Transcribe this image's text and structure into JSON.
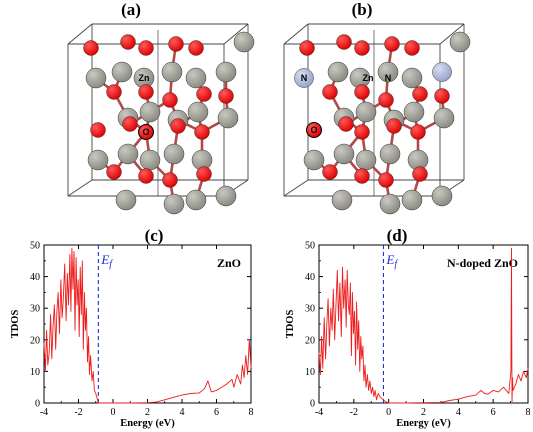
{
  "structures": [
    {
      "panel_label": "(a)",
      "atom_labels": [
        {
          "text": "Zn",
          "kind": "zn"
        },
        {
          "text": "O",
          "kind": "o"
        }
      ]
    },
    {
      "panel_label": "(b)",
      "atom_labels": [
        {
          "text": "N",
          "kind": "n"
        },
        {
          "text": "Zn",
          "kind": "zn"
        },
        {
          "text": "N",
          "kind": "n"
        },
        {
          "text": "O",
          "kind": "o"
        }
      ]
    }
  ],
  "colors": {
    "zinc": "#8a8a82",
    "oxygen": "#e00000",
    "nitrogen": "#9aa3c8",
    "dos_line": "#ee1c1c",
    "fermi_line": "#1f2fd8",
    "cell_edge": "#444444"
  },
  "chart_data": [
    {
      "type": "line",
      "panel_label": "(c)",
      "title": "ZnO",
      "xlabel": "Energy (eV)",
      "ylabel": "TDOS",
      "xlim": [
        -4,
        8
      ],
      "ylim": [
        0,
        50
      ],
      "xticks": [
        -4,
        -2,
        0,
        2,
        4,
        6,
        8
      ],
      "yticks": [
        0,
        10,
        20,
        30,
        40,
        50
      ],
      "fermi_level": -0.85,
      "fermi_label": "E_f",
      "grid": false,
      "series": [
        {
          "x": [
            -4.0,
            -3.92,
            -3.85,
            -3.78,
            -3.7,
            -3.62,
            -3.55,
            -3.48,
            -3.4,
            -3.32,
            -3.25,
            -3.18,
            -3.1,
            -3.02,
            -2.95,
            -2.88,
            -2.8,
            -2.72,
            -2.65,
            -2.58,
            -2.5,
            -2.44,
            -2.38,
            -2.32,
            -2.26,
            -2.2,
            -2.14,
            -2.08,
            -2.02,
            -1.96,
            -1.9,
            -1.84,
            -1.78,
            -1.72,
            -1.66,
            -1.6,
            -1.54,
            -1.48,
            -1.42,
            -1.36,
            -1.3,
            -1.22,
            -1.15,
            -1.08,
            -1.0,
            -0.95,
            -0.9,
            -0.85,
            -0.8,
            -0.5,
            0.0,
            1.0,
            2.0,
            2.5,
            3.0,
            3.5,
            4.0,
            4.5,
            5.0,
            5.3,
            5.5,
            5.7,
            6.0,
            6.3,
            6.6,
            6.9,
            7.0,
            7.2,
            7.4,
            7.5,
            7.6,
            7.7,
            7.8,
            7.9,
            8.0
          ],
          "y": [
            19,
            10,
            23,
            12,
            16,
            28,
            14,
            24,
            31,
            17,
            29,
            35,
            22,
            39,
            27,
            33,
            44,
            26,
            41,
            31,
            47,
            29,
            49,
            36,
            48,
            23,
            46,
            31,
            39,
            21,
            43,
            28,
            45,
            17,
            35,
            23,
            30,
            13,
            21,
            9,
            15,
            7,
            10,
            4,
            3,
            2,
            1,
            0,
            0,
            0,
            0,
            0,
            0.1,
            0.3,
            1,
            1.8,
            2.5,
            3,
            3.2,
            4.5,
            7,
            3.5,
            4,
            5,
            6,
            7.5,
            5,
            9,
            6,
            12,
            8,
            15,
            9,
            20,
            11
          ]
        }
      ]
    },
    {
      "type": "line",
      "panel_label": "(d)",
      "title": "N-doped ZnO",
      "xlabel": "Energy (eV)",
      "ylabel": "TDOS",
      "xlim": [
        -4,
        8
      ],
      "ylim": [
        0,
        50
      ],
      "xticks": [
        -4,
        -2,
        0,
        2,
        4,
        6,
        8
      ],
      "yticks": [
        0,
        10,
        20,
        30,
        40,
        50
      ],
      "fermi_level": -0.3,
      "fermi_label": "E_f",
      "grid": false,
      "series": [
        {
          "x": [
            -4.0,
            -3.92,
            -3.85,
            -3.78,
            -3.7,
            -3.62,
            -3.55,
            -3.48,
            -3.4,
            -3.32,
            -3.25,
            -3.18,
            -3.1,
            -3.02,
            -2.95,
            -2.88,
            -2.8,
            -2.72,
            -2.65,
            -2.58,
            -2.5,
            -2.44,
            -2.38,
            -2.32,
            -2.26,
            -2.2,
            -2.14,
            -2.08,
            -2.02,
            -1.96,
            -1.9,
            -1.84,
            -1.78,
            -1.72,
            -1.66,
            -1.6,
            -1.54,
            -1.48,
            -1.42,
            -1.36,
            -1.3,
            -1.22,
            -1.15,
            -1.08,
            -1.0,
            -0.92,
            -0.85,
            -0.78,
            -0.7,
            -0.6,
            -0.5,
            -0.4,
            -0.3,
            -0.2,
            0.0,
            1.0,
            2.0,
            3.0,
            3.5,
            4.0,
            4.5,
            5.0,
            5.3,
            5.5,
            5.7,
            6.0,
            6.3,
            6.6,
            6.9,
            7.02,
            7.05,
            7.08,
            7.11,
            7.14,
            7.3,
            7.45,
            7.6,
            7.75,
            7.9,
            8.0
          ],
          "y": [
            16,
            9,
            21,
            11,
            27,
            14,
            25,
            33,
            18,
            30,
            23,
            36,
            20,
            32,
            42,
            26,
            38,
            21,
            43,
            30,
            39,
            24,
            42,
            31,
            28,
            38,
            15,
            35,
            22,
            29,
            12,
            32,
            17,
            26,
            10,
            21,
            14,
            18,
            7,
            12,
            5,
            9,
            4,
            7,
            3,
            5,
            2,
            4,
            1,
            3,
            2,
            1.5,
            1,
            0.5,
            0,
            0,
            0.1,
            0.2,
            0.8,
            1.2,
            2,
            2.5,
            4,
            3,
            2.8,
            4,
            3.5,
            5,
            3,
            10,
            49,
            0,
            8,
            4,
            6,
            9,
            7,
            10,
            8,
            11
          ]
        }
      ]
    }
  ]
}
